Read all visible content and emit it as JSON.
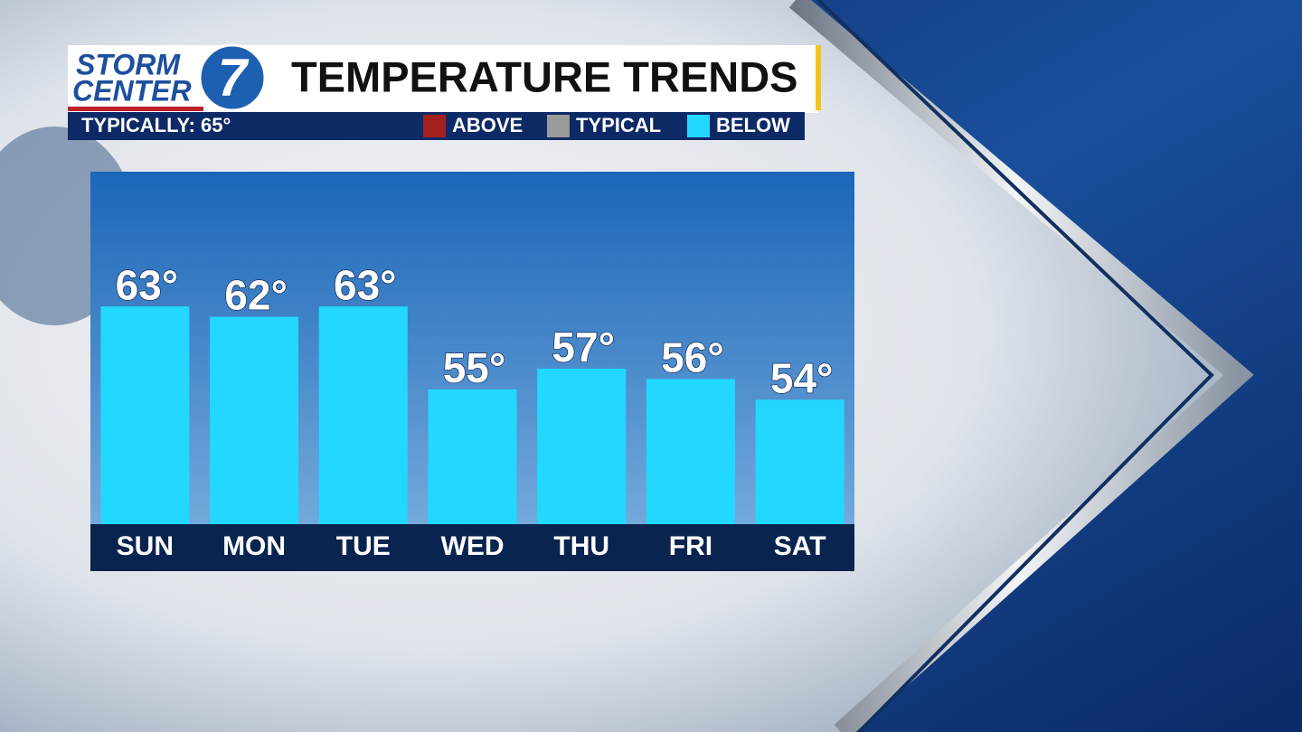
{
  "chart_data": {
    "type": "bar",
    "logo": {
      "line1": "STORM",
      "line2": "CENTER",
      "number": "7"
    },
    "title": "TEMPERATURE TRENDS",
    "subtitle": "TYPICALLY: 65°",
    "legend": [
      {
        "name": "ABOVE",
        "color": "#a3201c"
      },
      {
        "name": "TYPICAL",
        "color": "#9a9a9a"
      },
      {
        "name": "BELOW",
        "color": "#22d8ff"
      }
    ],
    "categories": [
      "SUN",
      "MON",
      "TUE",
      "WED",
      "THU",
      "FRI",
      "SAT"
    ],
    "values": [
      63,
      62,
      63,
      55,
      57,
      56,
      54
    ],
    "value_labels": [
      "63°",
      "62°",
      "63°",
      "55°",
      "57°",
      "56°",
      "54°"
    ],
    "color": "#22d8ff",
    "ylim": [
      42,
      76
    ]
  }
}
